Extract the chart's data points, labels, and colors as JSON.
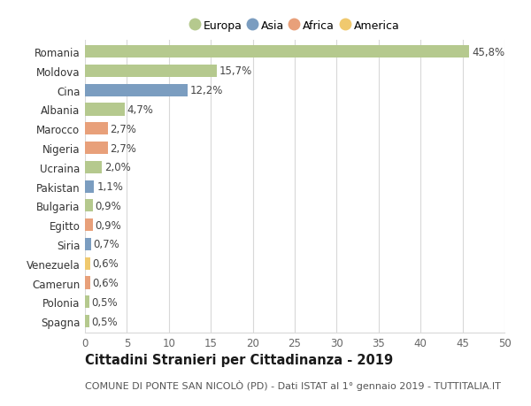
{
  "countries": [
    "Romania",
    "Moldova",
    "Cina",
    "Albania",
    "Marocco",
    "Nigeria",
    "Ucraina",
    "Pakistan",
    "Bulgaria",
    "Egitto",
    "Siria",
    "Venezuela",
    "Camerun",
    "Polonia",
    "Spagna"
  ],
  "values": [
    45.8,
    15.7,
    12.2,
    4.7,
    2.7,
    2.7,
    2.0,
    1.1,
    0.9,
    0.9,
    0.7,
    0.6,
    0.6,
    0.5,
    0.5
  ],
  "labels": [
    "45,8%",
    "15,7%",
    "12,2%",
    "4,7%",
    "2,7%",
    "2,7%",
    "2,0%",
    "1,1%",
    "0,9%",
    "0,9%",
    "0,7%",
    "0,6%",
    "0,6%",
    "0,5%",
    "0,5%"
  ],
  "continents": [
    "Europa",
    "Europa",
    "Asia",
    "Europa",
    "Africa",
    "Africa",
    "Europa",
    "Asia",
    "Europa",
    "Africa",
    "Asia",
    "America",
    "Africa",
    "Europa",
    "Europa"
  ],
  "continent_colors": {
    "Europa": "#b5c98e",
    "Asia": "#7b9dc0",
    "Africa": "#e8a07a",
    "America": "#f0c96e"
  },
  "legend_order": [
    "Europa",
    "Asia",
    "Africa",
    "America"
  ],
  "xlim": [
    0,
    50
  ],
  "xticks": [
    0,
    5,
    10,
    15,
    20,
    25,
    30,
    35,
    40,
    45,
    50
  ],
  "title": "Cittadini Stranieri per Cittadinanza - 2019",
  "subtitle": "COMUNE DI PONTE SAN NICOLÒ (PD) - Dati ISTAT al 1° gennaio 2019 - TUTTITALIA.IT",
  "background_color": "#ffffff",
  "grid_color": "#d8d8d8",
  "bar_height": 0.65,
  "label_fontsize": 8.5,
  "title_fontsize": 10.5,
  "subtitle_fontsize": 8.0
}
